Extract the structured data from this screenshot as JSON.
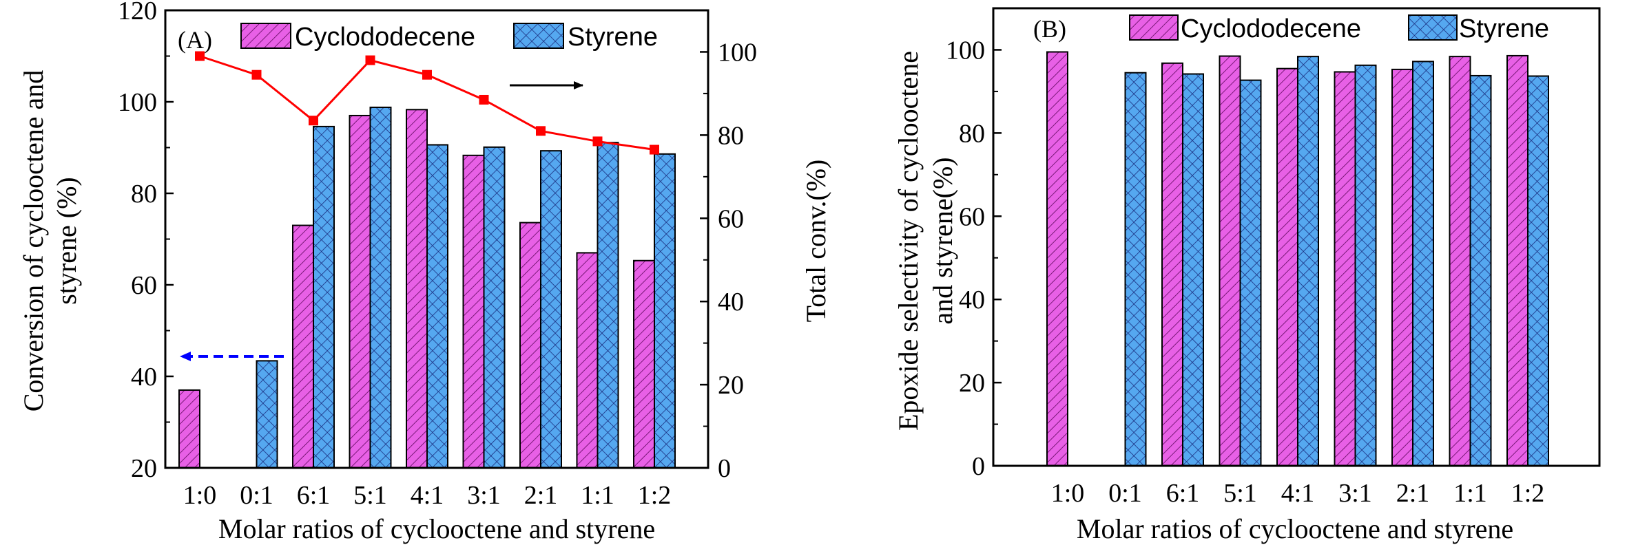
{
  "colors": {
    "cyclododecene_fill": "#e860e6",
    "cyclododecene_hatch": "#7a1a78",
    "styrene_fill": "#55a8f0",
    "styrene_hatch": "#1a2e80",
    "line": "#ff0000",
    "arrow_blue": "#0000ff",
    "axis": "#000000"
  },
  "chart_data": [
    {
      "panel": "A",
      "panel_label": "(A)",
      "type": "bar",
      "categories": [
        "1:0",
        "0:1",
        "6:1",
        "5:1",
        "4:1",
        "3:1",
        "2:1",
        "1:1",
        "1:2"
      ],
      "series": [
        {
          "name": "Cyclododecene",
          "values": [
            37,
            null,
            73,
            97,
            98.3,
            88.3,
            73.6,
            67,
            65.3
          ]
        },
        {
          "name": "Styrene",
          "values": [
            null,
            43.4,
            94.6,
            98.8,
            90.6,
            90.1,
            89.3,
            91.1,
            88.6
          ]
        }
      ],
      "secondary_series": {
        "name": "Total conv.",
        "type": "line",
        "values": [
          99,
          94.5,
          83.5,
          98,
          94.5,
          88.5,
          81,
          78.5,
          76.5
        ]
      },
      "legend": [
        "Cyclododecene",
        "Styrene"
      ],
      "xlabel": "Molar ratios of cyclooctene and styrene",
      "ylabel": "Conversion of cyclooctene and styrene (%)",
      "ylabel_lines": [
        "Conversion of cyclooctene and",
        "styrene (%)"
      ],
      "y2label": "Total conv.(%)",
      "ylim": [
        20,
        120
      ],
      "yticks": [
        20,
        40,
        60,
        80,
        100,
        120
      ],
      "y2lim": [
        0,
        110
      ],
      "y2ticks": [
        0,
        20,
        40,
        60,
        80,
        100
      ],
      "annotations": [
        "left arrow (blue, dashed) indicates left axis for bars",
        "right arrow (black) indicates right axis for line"
      ]
    },
    {
      "panel": "B",
      "panel_label": "(B)",
      "type": "bar",
      "categories": [
        "1:0",
        "0:1",
        "6:1",
        "5:1",
        "4:1",
        "3:1",
        "2:1",
        "1:1",
        "1:2"
      ],
      "series": [
        {
          "name": "Cyclododecene",
          "values": [
            99.5,
            null,
            96.8,
            98.5,
            95.5,
            94.7,
            95.3,
            98.4,
            98.6
          ]
        },
        {
          "name": "Styrene",
          "values": [
            null,
            94.5,
            94.2,
            92.7,
            98.4,
            96.3,
            97.2,
            93.8,
            93.7
          ]
        }
      ],
      "legend": [
        "Cyclododecene",
        "Styrene"
      ],
      "xlabel": "Molar ratios of cyclooctene and styrene",
      "ylabel": "Epoxide selectivity of cyclooctene and styrene(%)",
      "ylabel_lines": [
        "Epoxide selectivity of cyclooctene",
        "and styrene(%)"
      ],
      "ylim": [
        0,
        110
      ],
      "yticks": [
        0,
        20,
        40,
        60,
        80,
        100
      ]
    }
  ]
}
